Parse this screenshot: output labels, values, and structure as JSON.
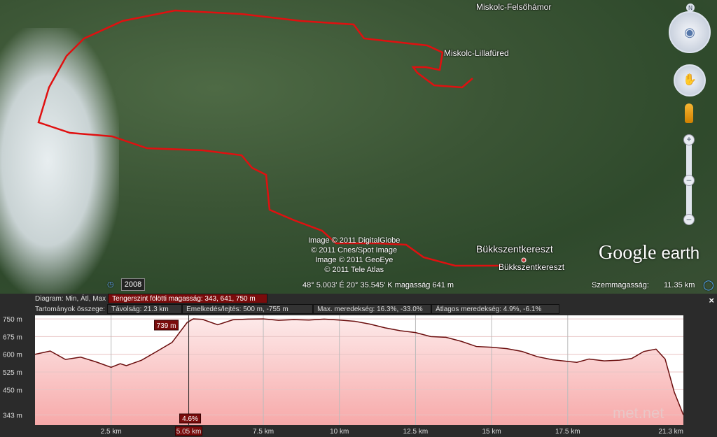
{
  "map": {
    "places": [
      "Miskolc-Felsőhámor",
      "Miskolc-Lillafüred",
      "Bükkszentkereszt",
      "Bükkszentkereszt"
    ],
    "copyright": [
      "Image © 2011 DigitalGlobe",
      "© 2011 Cnes/Spot Image",
      "Image © 2011 GeoEye",
      "© 2011 Tele Atlas"
    ],
    "logo": "Google",
    "logo2": "earth",
    "route_color": "#e01010",
    "nav_icons": [
      "north-arrow-icon",
      "look-joystick-icon",
      "move-joystick-icon",
      "street-view-pegman-icon",
      "zoom-in-icon",
      "zoom-out-icon"
    ]
  },
  "status": {
    "year": "2008",
    "coords": "48° 5.003' É  20° 35.545' K  magasság  641 m",
    "eye_label": "Szemmagasság:",
    "eye_value": "11.35 km"
  },
  "panel": {
    "diagram_label": "Diagram: Min, Átl, Max",
    "diagram_value": "Tengerszint fölötti magasság: 343, 641, 750 m",
    "range_label": "Tartományok összege:",
    "stats": [
      "Távolság: 21.3 km",
      "Emelkedés/lejtés: 500 m, -755 m",
      "Max. meredekség: 16.3%, -33.0%",
      "Átlagos meredekség: 4.9%, -6.1%"
    ],
    "close": "×"
  },
  "chart_data": {
    "type": "area",
    "xlabel": "",
    "ylabel": "",
    "x_ticks": [
      "2.5 km",
      "5.05 km",
      "7.5 km",
      "10 km",
      "12.5 km",
      "15 km",
      "17.5 km",
      "21.3 km"
    ],
    "x_tick_values": [
      2.5,
      5.05,
      7.5,
      10,
      12.5,
      15,
      17.5,
      21.3
    ],
    "y_ticks": [
      "750 m",
      "675 m",
      "600 m",
      "525 m",
      "450 m",
      "343 m"
    ],
    "y_tick_values": [
      750,
      675,
      600,
      525,
      450,
      343
    ],
    "xlim": [
      0,
      21.3
    ],
    "ylim": [
      300,
      765
    ],
    "grid": true,
    "cursor": {
      "x": 5.05,
      "elevation_label": "739 m",
      "slope_label": "4.6%",
      "x_label": "5.05 km"
    },
    "line_color": "#6a0d0d",
    "fill_color": "#f7a9a9",
    "points": [
      [
        0,
        600
      ],
      [
        0.5,
        614
      ],
      [
        1,
        578
      ],
      [
        1.5,
        588
      ],
      [
        2,
        568
      ],
      [
        2.5,
        545
      ],
      [
        2.8,
        560
      ],
      [
        3,
        552
      ],
      [
        3.5,
        575
      ],
      [
        4,
        612
      ],
      [
        4.5,
        650
      ],
      [
        5,
        735
      ],
      [
        5.2,
        750
      ],
      [
        5.5,
        748
      ],
      [
        6,
        725
      ],
      [
        6.5,
        746
      ],
      [
        7,
        749
      ],
      [
        7.5,
        750
      ],
      [
        8,
        744
      ],
      [
        8.5,
        747
      ],
      [
        9,
        745
      ],
      [
        9.5,
        749
      ],
      [
        10,
        745
      ],
      [
        10.5,
        740
      ],
      [
        11,
        728
      ],
      [
        11.5,
        712
      ],
      [
        12,
        700
      ],
      [
        12.5,
        692
      ],
      [
        13,
        675
      ],
      [
        13.5,
        672
      ],
      [
        14,
        655
      ],
      [
        14.5,
        633
      ],
      [
        15,
        630
      ],
      [
        15.5,
        624
      ],
      [
        16,
        612
      ],
      [
        16.5,
        590
      ],
      [
        17,
        577
      ],
      [
        17.5,
        570
      ],
      [
        17.8,
        566
      ],
      [
        18.2,
        580
      ],
      [
        18.7,
        572
      ],
      [
        19.2,
        575
      ],
      [
        19.6,
        582
      ],
      [
        20,
        612
      ],
      [
        20.4,
        622
      ],
      [
        20.7,
        580
      ],
      [
        21,
        440
      ],
      [
        21.3,
        343
      ]
    ]
  },
  "watermark": "met.net"
}
